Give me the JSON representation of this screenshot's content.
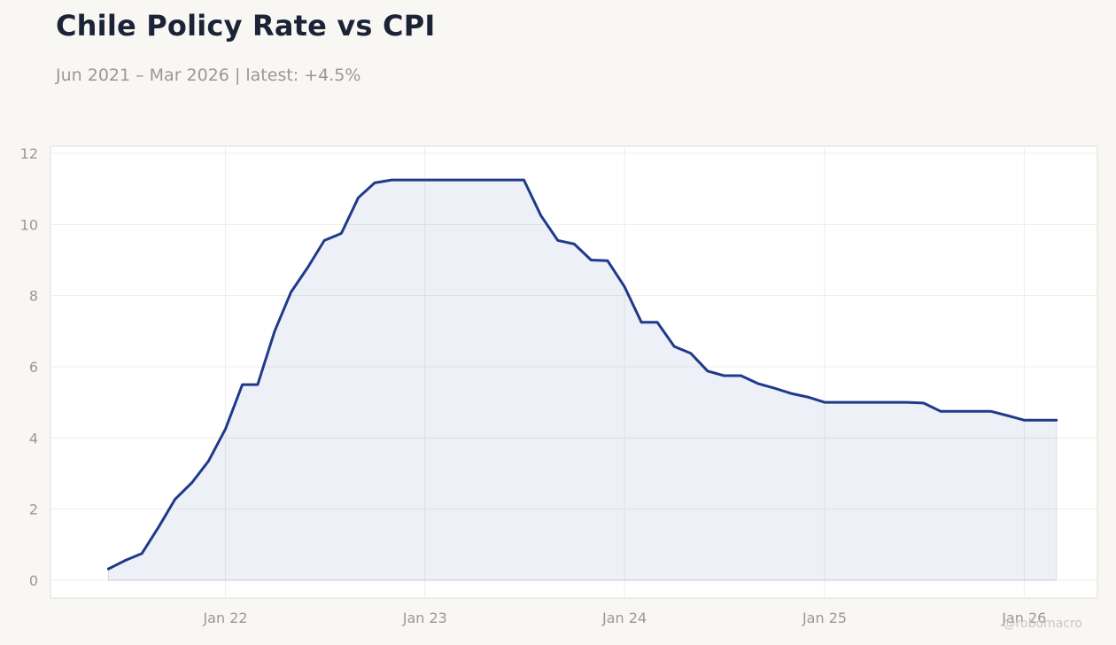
{
  "header": {
    "title": "Chile Policy Rate vs CPI",
    "subtitle": "Jun 2021 – Mar 2026 | latest: +4.5%"
  },
  "watermark": "@robomacro",
  "colors": {
    "line": "#1f3a8a",
    "fill": "#1f3a8a",
    "background": "#f8f7f4",
    "plot_background": "#ffffff",
    "grid": "#eceae6",
    "tick_text": "#9a9893"
  },
  "chart_data": {
    "type": "area",
    "title": "Chile Policy Rate vs CPI",
    "subtitle": "Jun 2021 – Mar 2026 | latest: +4.5%",
    "xlabel": "",
    "ylabel": "",
    "ylim": [
      -0.5,
      12.2
    ],
    "xlim": [
      "2021-02-15",
      "2026-05-15"
    ],
    "yticks": [
      0,
      2,
      4,
      6,
      8,
      10,
      12
    ],
    "xticks": [
      {
        "date": "2022-01-01",
        "label": "Jan 22"
      },
      {
        "date": "2023-01-01",
        "label": "Jan 23"
      },
      {
        "date": "2024-01-01",
        "label": "Jan 24"
      },
      {
        "date": "2025-01-01",
        "label": "Jan 25"
      },
      {
        "date": "2026-01-01",
        "label": "Jan 26"
      }
    ],
    "grid": true,
    "legend": "none",
    "series": [
      {
        "x": [
          "2021-06-01",
          "2021-07-01",
          "2021-08-01",
          "2021-09-01",
          "2021-10-01",
          "2021-11-01",
          "2021-12-01",
          "2022-01-01",
          "2022-02-01",
          "2022-03-01",
          "2022-04-01",
          "2022-05-01",
          "2022-06-01",
          "2022-07-01",
          "2022-08-01",
          "2022-09-01",
          "2022-10-01",
          "2022-11-01",
          "2022-12-01",
          "2023-01-01",
          "2023-02-01",
          "2023-03-01",
          "2023-04-01",
          "2023-05-01",
          "2023-06-01",
          "2023-07-01",
          "2023-08-01",
          "2023-09-01",
          "2023-10-01",
          "2023-11-01",
          "2023-12-01",
          "2024-01-01",
          "2024-02-01",
          "2024-03-01",
          "2024-04-01",
          "2024-05-01",
          "2024-06-01",
          "2024-07-01",
          "2024-08-01",
          "2024-09-01",
          "2024-10-01",
          "2024-11-01",
          "2024-12-01",
          "2025-01-01",
          "2025-02-01",
          "2025-03-01",
          "2025-04-01",
          "2025-05-01",
          "2025-06-01",
          "2025-07-01",
          "2025-08-01",
          "2025-09-01",
          "2025-10-01",
          "2025-11-01",
          "2025-12-01",
          "2026-01-01",
          "2026-02-01",
          "2026-03-01"
        ],
        "values": [
          0.32,
          0.55,
          0.75,
          1.5,
          2.28,
          2.75,
          3.35,
          4.25,
          5.5,
          5.5,
          7.0,
          8.1,
          8.8,
          9.55,
          9.75,
          10.75,
          11.17,
          11.25,
          11.25,
          11.25,
          11.25,
          11.25,
          11.25,
          11.25,
          11.25,
          11.25,
          10.25,
          9.55,
          9.45,
          9.0,
          8.98,
          8.25,
          7.25,
          7.25,
          6.57,
          6.38,
          5.88,
          5.75,
          5.75,
          5.53,
          5.4,
          5.25,
          5.15,
          5.0,
          5.0,
          5.0,
          5.0,
          5.0,
          5.0,
          4.98,
          4.75,
          4.75,
          4.75,
          4.75,
          4.63,
          4.5,
          4.5,
          4.5
        ]
      }
    ]
  }
}
